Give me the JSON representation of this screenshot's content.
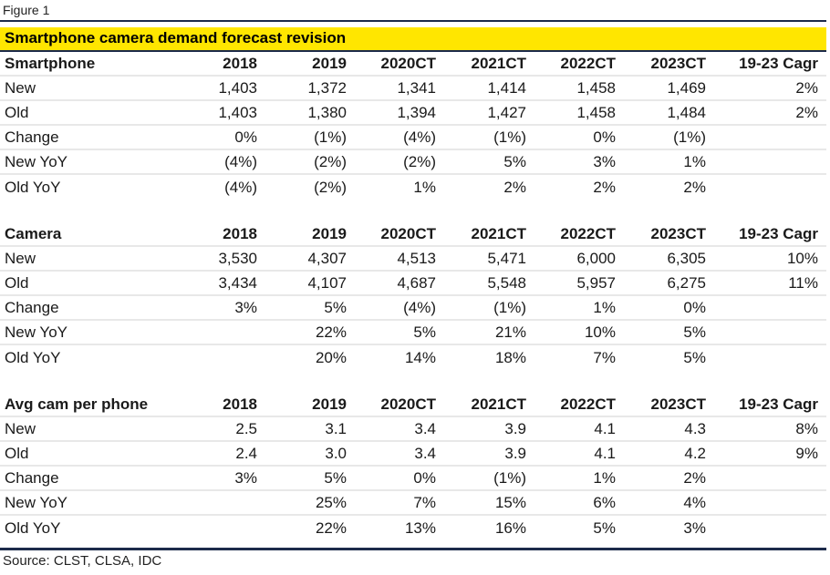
{
  "figure_label": "Figure 1",
  "title": "Smartphone camera demand forecast revision",
  "source": "Source: CLST, CLSA, IDC",
  "colors": {
    "title_bar": "#ffe600",
    "rule": "#1c2a4a"
  },
  "sections": [
    {
      "header": [
        "Smartphone",
        "2018",
        "2019",
        "2020CT",
        "2021CT",
        "2022CT",
        "2023CT",
        "19-23 Cagr"
      ],
      "rows": [
        [
          "New",
          "1,403",
          "1,372",
          "1,341",
          "1,414",
          "1,458",
          "1,469",
          "2%"
        ],
        [
          "Old",
          "1,403",
          "1,380",
          "1,394",
          "1,427",
          "1,458",
          "1,484",
          "2%"
        ],
        [
          "Change",
          "0%",
          "(1%)",
          "(4%)",
          "(1%)",
          "0%",
          "(1%)",
          ""
        ],
        [
          "New YoY",
          "(4%)",
          "(2%)",
          "(2%)",
          "5%",
          "3%",
          "1%",
          ""
        ],
        [
          "Old YoY",
          "(4%)",
          "(2%)",
          "1%",
          "2%",
          "2%",
          "2%",
          ""
        ]
      ]
    },
    {
      "header": [
        "Camera",
        "2018",
        "2019",
        "2020CT",
        "2021CT",
        "2022CT",
        "2023CT",
        "19-23 Cagr"
      ],
      "rows": [
        [
          "New",
          "3,530",
          "4,307",
          "4,513",
          "5,471",
          "6,000",
          "6,305",
          "10%"
        ],
        [
          "Old",
          "3,434",
          "4,107",
          "4,687",
          "5,548",
          "5,957",
          "6,275",
          "11%"
        ],
        [
          "Change",
          "3%",
          "5%",
          "(4%)",
          "(1%)",
          "1%",
          "0%",
          ""
        ],
        [
          "New YoY",
          "",
          "22%",
          "5%",
          "21%",
          "10%",
          "5%",
          ""
        ],
        [
          "Old YoY",
          "",
          "20%",
          "14%",
          "18%",
          "7%",
          "5%",
          ""
        ]
      ]
    },
    {
      "header": [
        "Avg cam per phone",
        "2018",
        "2019",
        "2020CT",
        "2021CT",
        "2022CT",
        "2023CT",
        "19-23 Cagr"
      ],
      "rows": [
        [
          "New",
          "2.5",
          "3.1",
          "3.4",
          "3.9",
          "4.1",
          "4.3",
          "8%"
        ],
        [
          "Old",
          "2.4",
          "3.0",
          "3.4",
          "3.9",
          "4.1",
          "4.2",
          "9%"
        ],
        [
          "Change",
          "3%",
          "5%",
          "0%",
          "(1%)",
          "1%",
          "2%",
          ""
        ],
        [
          "New YoY",
          "",
          "25%",
          "7%",
          "15%",
          "6%",
          "4%",
          ""
        ],
        [
          "Old YoY",
          "",
          "22%",
          "13%",
          "16%",
          "5%",
          "3%",
          ""
        ]
      ]
    }
  ]
}
